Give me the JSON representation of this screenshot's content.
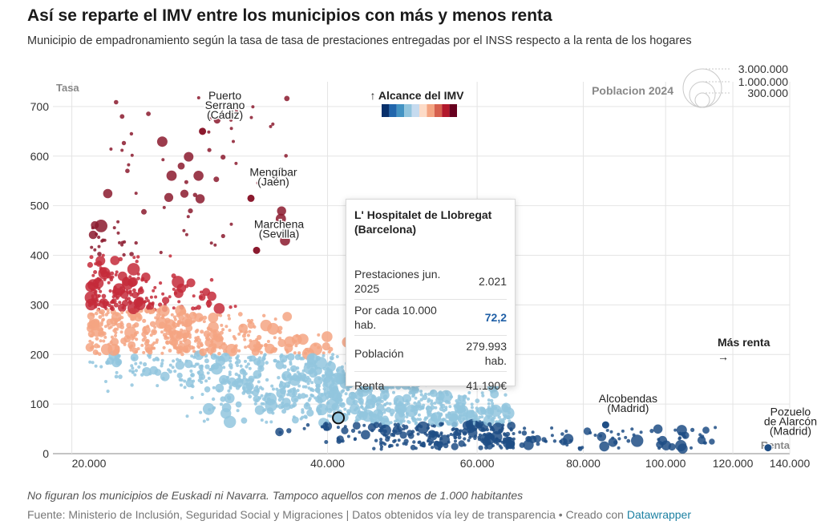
{
  "title": "Así se reparte el IMV entre los municipios con más y menos renta",
  "subtitle": "Municipio de empadronamiento según la tasa de tasa de prestaciones entregadas por el INSS respecto a la renta de los hogares",
  "note": "No figuran los municipios de Euskadi ni Navarra. Tampoco aquellos con menos de 1.000 habitantes",
  "source_text": "Fuente: Ministerio de Inclusión, Seguridad Social y Migraciones | Datos obtenidos vía ley de transparencia • Creado con ",
  "source_link": "Datawrapper",
  "tooltip": {
    "title": "L' Hospitalet de Llobregat (Barcelona)",
    "rows": [
      {
        "label": "Prestaciones jun. 2025",
        "value": "2.021"
      },
      {
        "label": "Por cada 10.000 hab.",
        "value": "72,2"
      },
      {
        "label": "Población",
        "value": "279.993 hab."
      },
      {
        "label": "Renta",
        "value": "41.190€"
      }
    ]
  },
  "chart_data": {
    "type": "scatter",
    "x_scale": "log",
    "xlim": [
      19000,
      140000
    ],
    "ylim": [
      0,
      750
    ],
    "ylabel": "Tasa",
    "xlabel": "Renta",
    "x_ticks": [
      "20.000",
      "40.000",
      "60.000",
      "80.000",
      "100.000",
      "120.000",
      "140.000"
    ],
    "x_tick_values": [
      20000,
      40000,
      60000,
      80000,
      100000,
      120000,
      140000
    ],
    "y_ticks": [
      "0",
      "100",
      "200",
      "300",
      "400",
      "500",
      "600",
      "700"
    ],
    "y_tick_values": [
      0,
      100,
      200,
      300,
      400,
      500,
      600,
      700
    ],
    "grid": true,
    "color_legend_title": "↑ Alcance del IMV",
    "color_scale": [
      "#08306b",
      "#2166ac",
      "#4393c3",
      "#92c5de",
      "#c6dbef",
      "#fddbc7",
      "#f4a582",
      "#d6604d",
      "#b2182b",
      "#67001f"
    ],
    "size_legend_title": "Poblacion 2024",
    "size_legend_values": [
      "3.000.000",
      "1.000.000",
      "300.000"
    ],
    "annotation_mas_renta": "Más renta",
    "annotation_arrow": "→",
    "bands": [
      {
        "ymin": 0,
        "ymax": 60,
        "color": "#1f4e85"
      },
      {
        "ymin": 60,
        "ymax": 200,
        "color": "#92c5de"
      },
      {
        "ymin": 200,
        "ymax": 290,
        "color": "#f4a582"
      },
      {
        "ymin": 290,
        "ymax": 400,
        "color": "#c42a3a"
      },
      {
        "ymin": 400,
        "ymax": 800,
        "color": "#8b1a2e"
      }
    ],
    "highlights": [
      {
        "name": "Puerto Serrano (Cádiz)",
        "label_lines": [
          "Puerto",
          "Serrano",
          "(Cádiz)"
        ],
        "x": 28500,
        "y": 650
      },
      {
        "name": "Mengíbar (Jaén)",
        "label_lines": [
          "Mengíbar",
          "(Jaén)"
        ],
        "x": 32500,
        "y": 515
      },
      {
        "name": "Marchena (Sevilla)",
        "label_lines": [
          "Marchena",
          "(Sevilla)"
        ],
        "x": 33000,
        "y": 410
      },
      {
        "name": "L' Hospitalet de Llobregat (Barcelona)",
        "label_lines": [],
        "x": 41190,
        "y": 72.2
      },
      {
        "name": "Alcobendas (Madrid)",
        "label_lines": [
          "Alcobendas",
          "(Madrid)"
        ],
        "x": 85000,
        "y": 58
      },
      {
        "name": "Pozuelo de Alarcón (Madrid)",
        "label_lines": [
          "Pozuelo",
          "de Alarcón",
          "(Madrid)"
        ],
        "x": 132000,
        "y": 12
      }
    ]
  }
}
